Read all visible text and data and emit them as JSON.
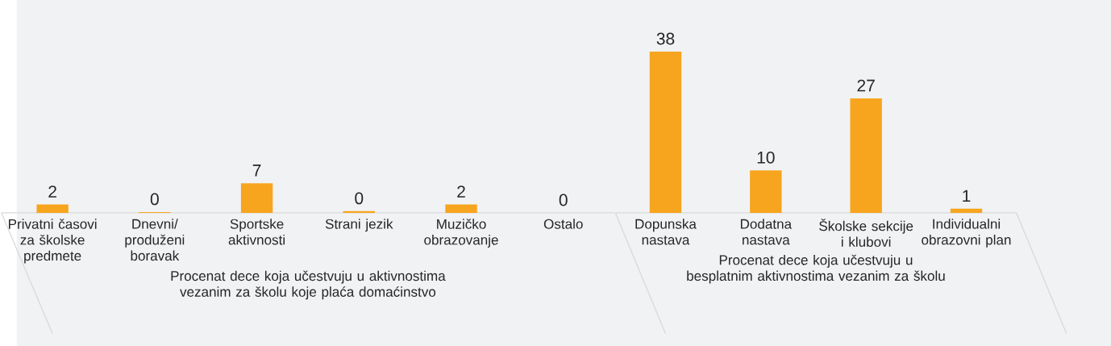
{
  "chart_data": [
    {
      "type": "bar",
      "xlabel": "Procenat dece koja učestvuju u aktivnostima vezanim za školu koje plaća domaćinstvo",
      "categories": [
        "Privatni časovi za školske predmete",
        "Dnevni/ produženi boravak",
        "Sportske aktivnosti",
        "Strani jezik",
        "Muzičko obrazovanje",
        "Ostalo"
      ],
      "values": [
        2,
        0.2,
        7,
        0.4,
        2,
        0
      ],
      "value_labels": [
        "2",
        "0",
        "7",
        "0",
        "2",
        "0"
      ],
      "color": "#f7a51e"
    },
    {
      "type": "bar",
      "xlabel": "Procenat dece koja učestvuju u besplatnim aktivnostima vezanim za školu",
      "categories": [
        "Dopunska nastava",
        "Dodatna nastava",
        "Školske sekcije i klubovi",
        "Individualni obrazovni plan"
      ],
      "values": [
        38,
        10,
        27,
        1
      ],
      "value_labels": [
        "38",
        "10",
        "27",
        "1"
      ],
      "color": "#f7a51e"
    }
  ]
}
